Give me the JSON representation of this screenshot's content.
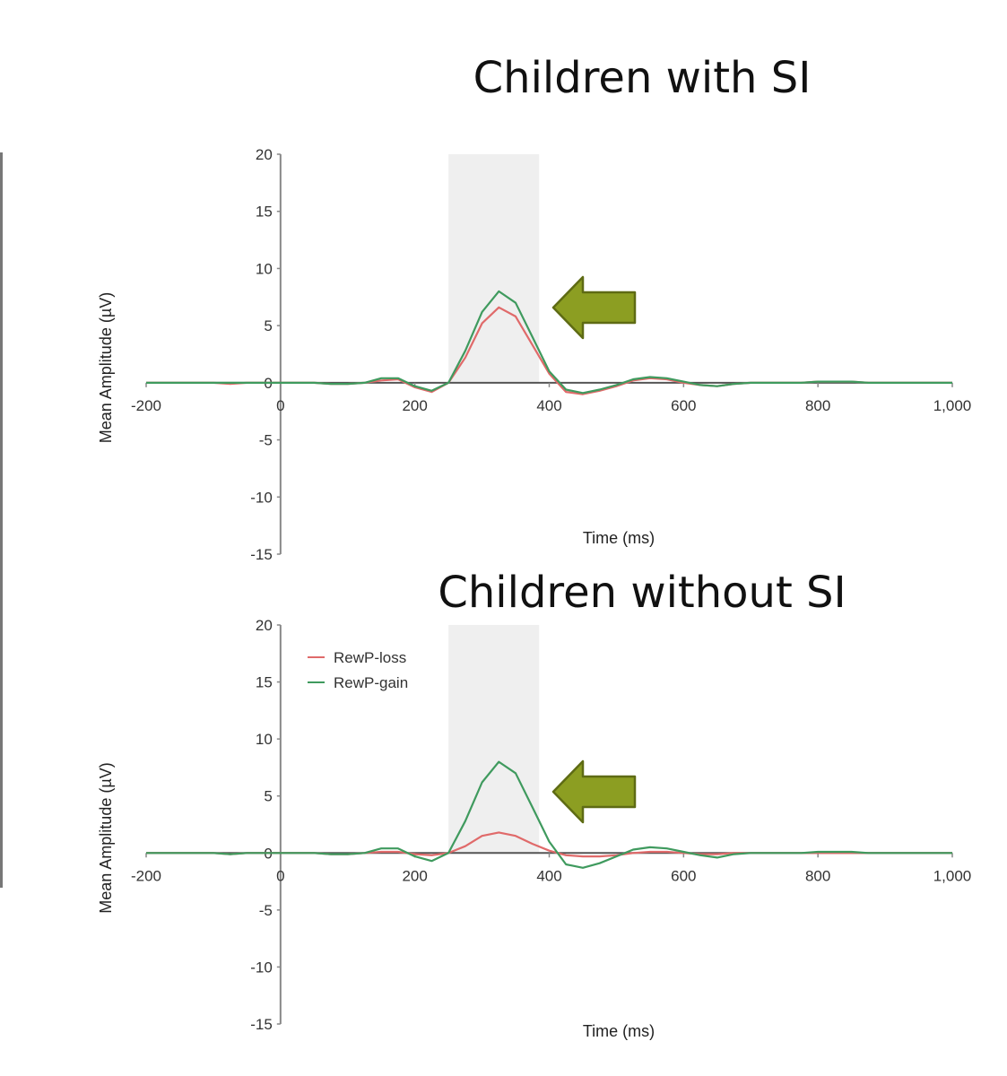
{
  "colors": {
    "loss": "#e06a6a",
    "gain": "#3f9a5e",
    "shade": "#efefef",
    "arrow": "#8c9e22",
    "arrow_border": "#5e6b14",
    "axis": "#888888"
  },
  "chart_data": [
    {
      "type": "line",
      "title": "Children with SI",
      "xlabel": "Time (ms)",
      "ylabel": "Mean Amplitude (µV)",
      "xlim": [
        -200,
        1000
      ],
      "ylim": [
        -15,
        20
      ],
      "xticks": [
        "-200",
        "0",
        "200",
        "400",
        "600",
        "800",
        "1,000"
      ],
      "xtick_values": [
        -200,
        0,
        200,
        400,
        600,
        800,
        1000
      ],
      "yticks": [
        "20",
        "15",
        "10",
        "5",
        "0",
        "-5",
        "-10",
        "-15"
      ],
      "ytick_values": [
        20,
        15,
        10,
        5,
        0,
        -5,
        -10,
        -15
      ],
      "shaded_window": [
        250,
        385
      ],
      "annotation": "left-pointing-arrow",
      "legend": false,
      "grid": false,
      "x": [
        -200,
        -175,
        -150,
        -125,
        -100,
        -75,
        -50,
        -25,
        0,
        25,
        50,
        75,
        100,
        125,
        150,
        175,
        200,
        225,
        250,
        275,
        300,
        325,
        350,
        375,
        400,
        425,
        450,
        475,
        500,
        525,
        550,
        575,
        600,
        625,
        650,
        675,
        700,
        725,
        750,
        775,
        800,
        825,
        850,
        875,
        900,
        925,
        950,
        975,
        1000
      ],
      "series": [
        {
          "name": "RewP-loss",
          "color": "#e06a6a",
          "values": [
            0,
            0,
            0,
            0,
            0,
            -0.1,
            0,
            0,
            0,
            0,
            0,
            -0.1,
            -0.1,
            0,
            0.2,
            0.3,
            -0.4,
            -0.8,
            0,
            2.2,
            5.2,
            6.6,
            5.8,
            3.3,
            0.8,
            -0.8,
            -1.0,
            -0.7,
            -0.3,
            0.2,
            0.4,
            0.3,
            0,
            -0.2,
            -0.3,
            -0.1,
            0,
            0,
            0,
            0,
            0.1,
            0.1,
            0.1,
            0,
            0,
            0,
            0,
            0,
            0
          ]
        },
        {
          "name": "RewP-gain",
          "color": "#3f9a5e",
          "values": [
            0,
            0,
            0,
            0,
            0,
            0,
            0,
            0,
            0,
            0,
            0,
            -0.1,
            -0.1,
            0,
            0.4,
            0.4,
            -0.3,
            -0.7,
            0,
            2.8,
            6.2,
            8.0,
            7.0,
            4.0,
            1.0,
            -0.6,
            -0.9,
            -0.6,
            -0.2,
            0.3,
            0.5,
            0.4,
            0.1,
            -0.2,
            -0.3,
            -0.1,
            0,
            0,
            0,
            0,
            0.1,
            0.1,
            0.1,
            0,
            0,
            0,
            0,
            0,
            0
          ]
        }
      ]
    },
    {
      "type": "line",
      "title": "Children without SI",
      "xlabel": "Time (ms)",
      "ylabel": "Mean Amplitude (µV)",
      "xlim": [
        -200,
        1000
      ],
      "ylim": [
        -15,
        20
      ],
      "xticks": [
        "-200",
        "0",
        "200",
        "400",
        "600",
        "800",
        "1,000"
      ],
      "xtick_values": [
        -200,
        0,
        200,
        400,
        600,
        800,
        1000
      ],
      "yticks": [
        "20",
        "15",
        "10",
        "5",
        "0",
        "-5",
        "-10",
        "-15"
      ],
      "ytick_values": [
        20,
        15,
        10,
        5,
        0,
        -5,
        -10,
        -15
      ],
      "shaded_window": [
        250,
        385
      ],
      "annotation": "left-pointing-arrow",
      "legend": true,
      "legend_position": "top-left",
      "grid": false,
      "x": [
        -200,
        -175,
        -150,
        -125,
        -100,
        -75,
        -50,
        -25,
        0,
        25,
        50,
        75,
        100,
        125,
        150,
        175,
        200,
        225,
        250,
        275,
        300,
        325,
        350,
        375,
        400,
        425,
        450,
        475,
        500,
        525,
        550,
        575,
        600,
        625,
        650,
        675,
        700,
        725,
        750,
        775,
        800,
        825,
        850,
        875,
        900,
        925,
        950,
        975,
        1000
      ],
      "series": [
        {
          "name": "RewP-loss",
          "color": "#e06a6a",
          "values": [
            0,
            0,
            0,
            0,
            0,
            -0.1,
            0,
            0,
            0,
            0,
            0,
            -0.1,
            -0.1,
            0,
            0.1,
            0.1,
            -0.1,
            -0.2,
            0,
            0.6,
            1.5,
            1.8,
            1.5,
            0.8,
            0.2,
            -0.2,
            -0.3,
            -0.3,
            -0.2,
            0,
            0.1,
            0.1,
            0,
            -0.1,
            -0.1,
            0,
            0,
            0,
            0,
            0,
            0,
            0,
            0,
            0,
            0,
            0,
            0,
            0,
            0
          ]
        },
        {
          "name": "RewP-gain",
          "color": "#3f9a5e",
          "values": [
            0,
            0,
            0,
            0,
            0,
            -0.1,
            0,
            0,
            0,
            0,
            0,
            -0.1,
            -0.1,
            0,
            0.4,
            0.4,
            -0.3,
            -0.7,
            0,
            2.8,
            6.2,
            8.0,
            7.0,
            4.0,
            1.0,
            -1.0,
            -1.3,
            -0.9,
            -0.3,
            0.3,
            0.5,
            0.4,
            0.1,
            -0.2,
            -0.4,
            -0.1,
            0,
            0,
            0,
            0,
            0.1,
            0.1,
            0.1,
            0,
            0,
            0,
            0,
            0,
            0
          ]
        }
      ]
    }
  ]
}
